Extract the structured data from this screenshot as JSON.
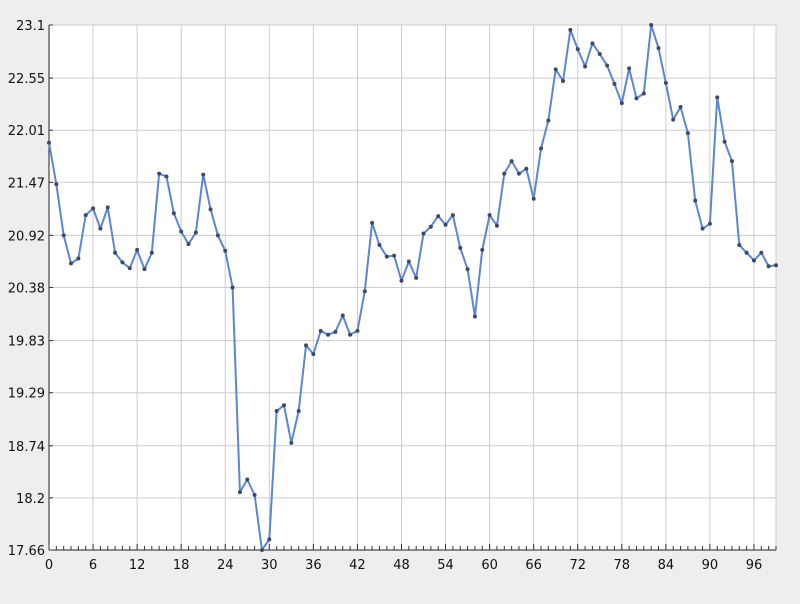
{
  "chart_data": {
    "type": "line",
    "title": "",
    "xlabel": "",
    "ylabel": "",
    "xlim": [
      0,
      99
    ],
    "ylim": [
      17.66,
      23.1
    ],
    "x_ticks": [
      0,
      6,
      12,
      18,
      24,
      30,
      36,
      42,
      48,
      54,
      60,
      66,
      72,
      78,
      84,
      90,
      96
    ],
    "x_tick_labels": [
      "0",
      "6",
      "12",
      "18",
      "24",
      "30",
      "36",
      "42",
      "48",
      "54",
      "60",
      "66",
      "72",
      "78",
      "84",
      "90",
      "96"
    ],
    "y_ticks": [
      17.66,
      18.2,
      18.74,
      19.29,
      19.83,
      20.38,
      20.92,
      21.47,
      22.01,
      22.55,
      23.1
    ],
    "y_tick_labels": [
      "17.66",
      "18.2",
      "18.74",
      "19.29",
      "19.83",
      "20.38",
      "20.92",
      "21.47",
      "22.01",
      "22.55",
      "23.1"
    ],
    "grid": true,
    "legend": "none",
    "colors": {
      "series": "#5b86d6",
      "marker": "#3d4a66",
      "grid": "#cccccc",
      "plot_bg": "#ffffff",
      "page_bg": "#eeeeee"
    },
    "series": [
      {
        "values": [
          21.88,
          21.45,
          20.92,
          20.63,
          20.68,
          21.13,
          21.2,
          20.99,
          21.21,
          20.74,
          20.64,
          20.58,
          20.77,
          20.57,
          20.74,
          21.56,
          21.53,
          21.15,
          20.96,
          20.83,
          20.95,
          21.55,
          21.19,
          20.92,
          20.76,
          20.38,
          18.26,
          18.39,
          18.23,
          17.66,
          17.77,
          19.1,
          19.16,
          18.77,
          19.1,
          19.78,
          19.69,
          19.93,
          19.89,
          19.92,
          20.09,
          19.89,
          19.93,
          20.34,
          21.05,
          20.82,
          20.7,
          20.71,
          20.45,
          20.65,
          20.48,
          20.94,
          21.01,
          21.12,
          21.03,
          21.13,
          20.79,
          20.57,
          20.08,
          20.77,
          21.13,
          21.02,
          21.56,
          21.69,
          21.56,
          21.61,
          21.3,
          21.82,
          22.11,
          22.64,
          22.52,
          23.05,
          22.85,
          22.67,
          22.91,
          22.8,
          22.68,
          22.49,
          22.29,
          22.65,
          22.34,
          22.39,
          23.1,
          22.86,
          22.5,
          22.12,
          22.25,
          21.98,
          21.28,
          20.99,
          21.04,
          22.35,
          21.89,
          21.69,
          20.82,
          20.74,
          20.66,
          20.74,
          20.6,
          20.61
        ]
      }
    ]
  }
}
